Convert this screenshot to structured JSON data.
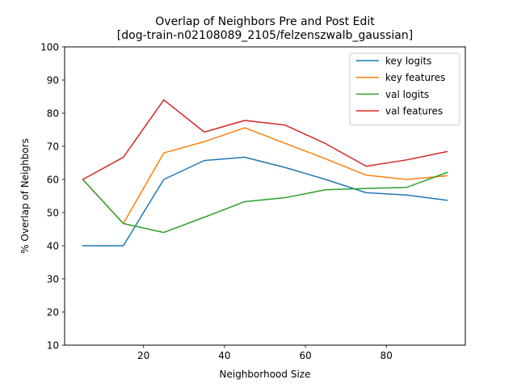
{
  "chart_data": {
    "type": "line",
    "title": "Overlap of Neighbors Pre and Post Edit",
    "subtitle": "[dog-train-n02108089_2105/felzenszwalb_gaussian]",
    "xlabel": "Neighborhood Size",
    "ylabel": "% Overlap of Neighbors",
    "xlim": [
      0.5,
      99.5
    ],
    "ylim": [
      10,
      100
    ],
    "xticks": [
      20,
      40,
      60,
      80
    ],
    "yticks": [
      10,
      20,
      30,
      40,
      50,
      60,
      70,
      80,
      90,
      100
    ],
    "grid": false,
    "legend_position": "top-right",
    "x": [
      5,
      15,
      25,
      35,
      45,
      55,
      65,
      75,
      85,
      95
    ],
    "series": [
      {
        "name": "key logits",
        "color": "#1f77b4",
        "values": [
          40.0,
          40.0,
          60.0,
          65.7,
          66.7,
          63.6,
          60.0,
          56.0,
          55.3,
          53.7
        ]
      },
      {
        "name": "key features",
        "color": "#ff7f0e",
        "values": [
          60.0,
          46.7,
          68.0,
          71.4,
          75.6,
          70.9,
          66.2,
          61.3,
          60.0,
          61.1
        ]
      },
      {
        "name": "val logits",
        "color": "#2ca02c",
        "values": [
          60.0,
          46.7,
          44.0,
          48.6,
          53.3,
          54.5,
          56.9,
          57.3,
          57.6,
          62.1
        ]
      },
      {
        "name": "val features",
        "color": "#d62728",
        "values": [
          60.0,
          66.7,
          84.0,
          74.3,
          77.8,
          76.4,
          70.8,
          64.0,
          65.9,
          68.4
        ]
      }
    ]
  }
}
